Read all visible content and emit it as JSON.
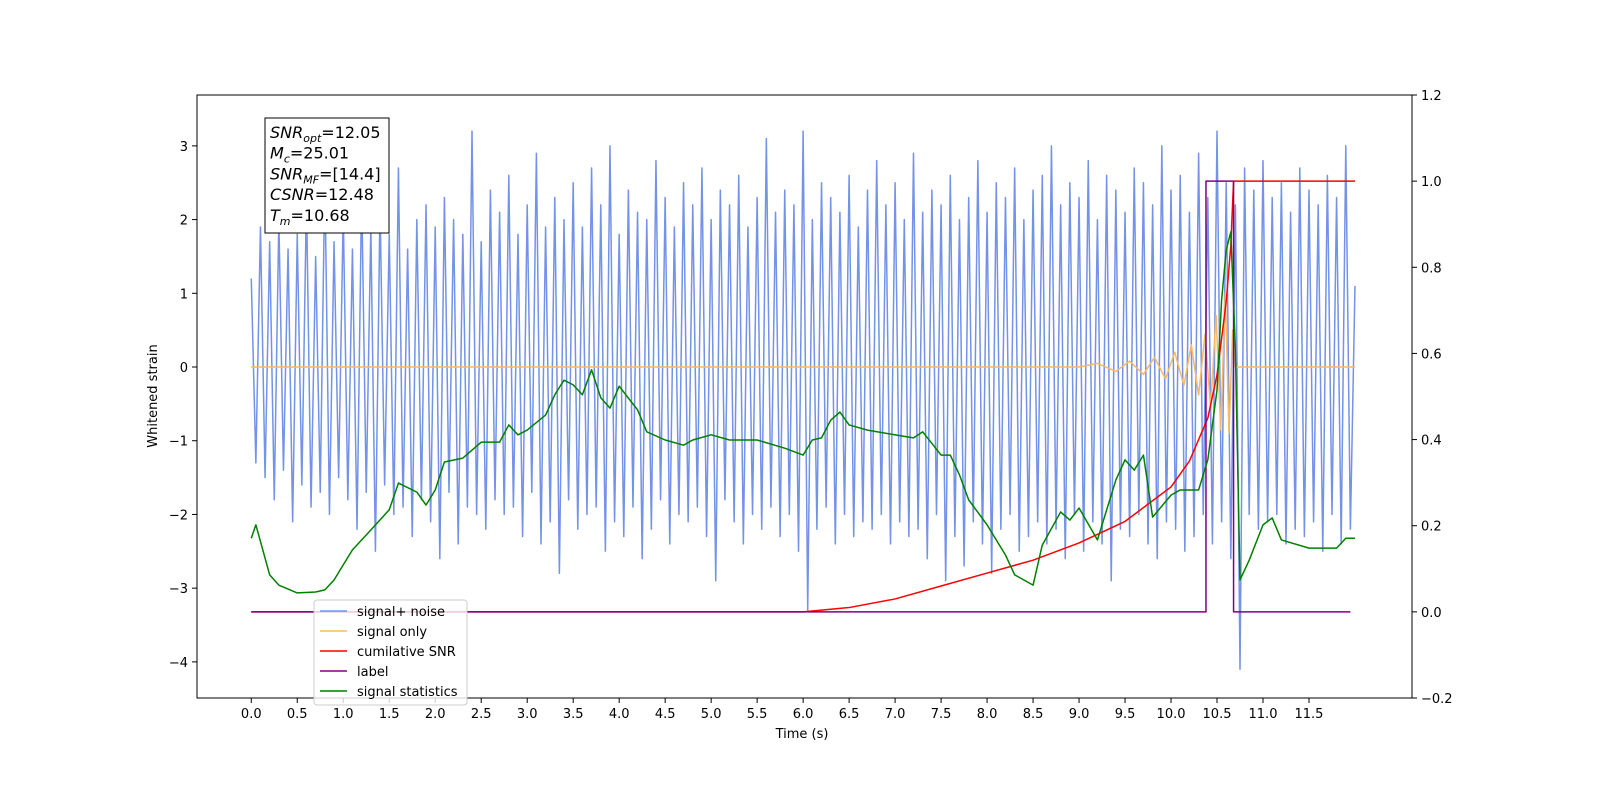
{
  "chart_data": {
    "type": "line",
    "xlabel": "Time (s)",
    "ylabel": "Whitened strain",
    "xlim": [
      -0.59,
      12.62
    ],
    "ylim": [
      -4.49,
      3.69
    ],
    "y2lim": [
      -0.2,
      1.2
    ],
    "xticks": [
      {
        "value": 0,
        "label": "0.0"
      },
      0.5,
      {
        "value": 1,
        "label": "1.0"
      },
      1.5,
      {
        "value": 2,
        "label": "2.0"
      },
      2.5,
      {
        "value": 3,
        "label": "3.0"
      },
      3.5,
      {
        "value": 4,
        "label": "4.0"
      },
      4.5,
      {
        "value": 5,
        "label": "5.0"
      },
      5.5,
      {
        "value": 6,
        "label": "6.0"
      },
      6.5,
      {
        "value": 7,
        "label": "7.0"
      },
      7.5,
      {
        "value": 8,
        "label": "8.0"
      },
      8.5,
      {
        "value": 9,
        "label": "9.0"
      },
      9.5,
      {
        "value": 10,
        "label": "10.0"
      },
      10.5,
      {
        "value": 11,
        "label": "11.0"
      },
      11.5
    ],
    "yticks": [
      {
        "value": -4,
        "label": "−4"
      },
      {
        "value": -3,
        "label": "−3"
      },
      {
        "value": -2,
        "label": "−2"
      },
      {
        "value": -1,
        "label": "−1"
      },
      0,
      1,
      2,
      3
    ],
    "y2ticks": [
      {
        "value": -0.2,
        "label": "−0.2"
      },
      {
        "value": 0,
        "label": "0.0"
      },
      0.2,
      0.4,
      0.6,
      0.8,
      {
        "value": 1,
        "label": "1.0"
      },
      1.2
    ],
    "annotation": [
      {
        "name": "SNR",
        "sub": "opt",
        "rest": "=12.05"
      },
      {
        "name": "M",
        "sub": "c",
        "rest": "=25.01"
      },
      {
        "name": "SNR",
        "sub": "MF",
        "rest": "=[14.4]"
      },
      {
        "name": "CSNR",
        "rest": "=12.48"
      },
      {
        "name": "T",
        "sub": "m",
        "rest": "=10.68"
      }
    ],
    "series": [
      {
        "name": "signal+ noise",
        "color": "#7392e8",
        "x": [
          0,
          0.05,
          0.1,
          0.15,
          0.2,
          0.25,
          0.3,
          0.35,
          0.4,
          0.45,
          0.5,
          0.55,
          0.6,
          0.65,
          0.7,
          0.75,
          0.8,
          0.85,
          0.9,
          0.95,
          1,
          1.05,
          1.1,
          1.15,
          1.2,
          1.25,
          1.3,
          1.35,
          1.4,
          1.45,
          1.5,
          1.55,
          1.6,
          1.65,
          1.7,
          1.75,
          1.8,
          1.85,
          1.9,
          1.95,
          2,
          2.05,
          2.1,
          2.15,
          2.2,
          2.25,
          2.3,
          2.35,
          2.4,
          2.45,
          2.5,
          2.55,
          2.6,
          2.65,
          2.7,
          2.75,
          2.8,
          2.85,
          2.9,
          2.95,
          3,
          3.05,
          3.1,
          3.15,
          3.2,
          3.25,
          3.3,
          3.35,
          3.4,
          3.45,
          3.5,
          3.55,
          3.6,
          3.65,
          3.7,
          3.75,
          3.8,
          3.85,
          3.9,
          3.95,
          4,
          4.05,
          4.1,
          4.15,
          4.2,
          4.25,
          4.3,
          4.35,
          4.4,
          4.45,
          4.5,
          4.55,
          4.6,
          4.65,
          4.7,
          4.75,
          4.8,
          4.85,
          4.9,
          4.95,
          5,
          5.05,
          5.1,
          5.15,
          5.2,
          5.25,
          5.3,
          5.35,
          5.4,
          5.45,
          5.5,
          5.55,
          5.6,
          5.65,
          5.7,
          5.75,
          5.8,
          5.85,
          5.9,
          5.95,
          6,
          6.05,
          6.1,
          6.15,
          6.2,
          6.25,
          6.3,
          6.35,
          6.4,
          6.45,
          6.5,
          6.55,
          6.6,
          6.65,
          6.7,
          6.75,
          6.8,
          6.85,
          6.9,
          6.95,
          7,
          7.05,
          7.1,
          7.15,
          7.2,
          7.25,
          7.3,
          7.35,
          7.4,
          7.45,
          7.5,
          7.55,
          7.6,
          7.65,
          7.7,
          7.75,
          7.8,
          7.85,
          7.9,
          7.95,
          8,
          8.05,
          8.1,
          8.15,
          8.2,
          8.25,
          8.3,
          8.35,
          8.4,
          8.45,
          8.5,
          8.55,
          8.6,
          8.65,
          8.7,
          8.75,
          8.8,
          8.85,
          8.9,
          8.95,
          9,
          9.05,
          9.1,
          9.15,
          9.2,
          9.25,
          9.3,
          9.35,
          9.4,
          9.45,
          9.5,
          9.55,
          9.6,
          9.65,
          9.7,
          9.75,
          9.8,
          9.85,
          9.9,
          9.95,
          10,
          10.05,
          10.1,
          10.15,
          10.2,
          10.25,
          10.3,
          10.35,
          10.4,
          10.45,
          10.5,
          10.55,
          10.6,
          10.65,
          10.7,
          10.75,
          10.8,
          10.85,
          10.9,
          10.95,
          11,
          11.05,
          11.1,
          11.15,
          11.2,
          11.25,
          11.3,
          11.35,
          11.4,
          11.45,
          11.5,
          11.55,
          11.6,
          11.65,
          11.7,
          11.75,
          11.8,
          11.85,
          11.9,
          11.95,
          12
        ],
        "values": [
          1.2,
          -1.3,
          1.9,
          -1.5,
          1.7,
          -1.8,
          2.0,
          -1.4,
          1.6,
          -2.1,
          1.8,
          -1.6,
          2.3,
          -1.9,
          1.5,
          -1.7,
          2.6,
          -2.0,
          1.7,
          -1.5,
          2.1,
          -1.8,
          1.6,
          -2.2,
          2.4,
          -1.7,
          1.9,
          -2.5,
          2.2,
          -1.6,
          1.8,
          -2.0,
          2.7,
          -1.9,
          1.6,
          -2.3,
          2.0,
          -1.8,
          2.2,
          -2.1,
          1.9,
          -2.6,
          2.3,
          -1.7,
          2.0,
          -2.4,
          1.8,
          -1.9,
          3.2,
          -2.0,
          1.7,
          -2.2,
          2.4,
          -1.8,
          2.1,
          -2.0,
          2.6,
          -1.9,
          1.8,
          -2.3,
          2.2,
          -1.7,
          2.9,
          -2.4,
          1.9,
          -2.1,
          2.3,
          -2.8,
          2.0,
          -1.8,
          2.5,
          -2.2,
          1.9,
          -2.0,
          2.7,
          -1.9,
          2.2,
          -2.5,
          3.0,
          -2.1,
          1.8,
          -2.3,
          2.4,
          -1.9,
          2.1,
          -2.6,
          2.0,
          -2.2,
          2.8,
          -1.8,
          2.3,
          -2.4,
          1.9,
          -2.0,
          2.5,
          -2.1,
          2.2,
          -1.9,
          2.7,
          -2.3,
          2.0,
          -2.9,
          2.4,
          -1.8,
          2.2,
          -2.1,
          2.6,
          -2.4,
          1.9,
          -2.0,
          2.3,
          -2.2,
          3.1,
          -1.9,
          2.1,
          -2.3,
          2.4,
          -2.0,
          2.2,
          -2.5,
          3.2,
          -3.3,
          2.0,
          -2.2,
          2.5,
          -1.9,
          2.3,
          -2.4,
          2.1,
          -2.0,
          2.6,
          -2.3,
          1.9,
          -2.1,
          2.4,
          -2.2,
          2.8,
          -2.0,
          2.2,
          -2.4,
          2.5,
          -2.1,
          2.0,
          -2.3,
          2.9,
          -2.2,
          2.1,
          -2.6,
          2.4,
          -2.0,
          2.2,
          -2.9,
          2.6,
          -2.3,
          2.0,
          -2.7,
          2.3,
          -2.1,
          2.8,
          -2.4,
          2.1,
          -2.8,
          2.5,
          -2.2,
          2.3,
          -2.0,
          2.7,
          -2.5,
          2.0,
          -2.3,
          2.4,
          -2.1,
          2.6,
          -2.4,
          3.0,
          -2.2,
          2.2,
          -2.6,
          2.5,
          -2.0,
          2.3,
          -2.5,
          2.8,
          -2.1,
          2.0,
          -2.4,
          2.6,
          -2.9,
          2.4,
          -2.2,
          2.1,
          -2.3,
          2.7,
          -2.0,
          2.5,
          -2.4,
          2.2,
          -2.6,
          3.0,
          -2.1,
          2.4,
          -2.2,
          2.6,
          -2.5,
          2.1,
          -2.3,
          2.9,
          -2.0,
          2.3,
          -2.4,
          3.2,
          -2.1,
          2.5,
          -2.6,
          2.2,
          -4.1,
          2.7,
          -2.0,
          2.4,
          -2.2,
          2.8,
          -2.1,
          2.3,
          -2.0,
          2.5,
          -2.4,
          2.1,
          -2.2,
          2.7,
          -2.3,
          2.4,
          -2.1,
          2.2,
          -2.5,
          2.6,
          -2.0,
          2.3,
          -2.4,
          3.0,
          -2.2,
          1.1
        ]
      },
      {
        "name": "signal only",
        "color": "#f7b965",
        "x": [
          0,
          9.0,
          9.2,
          9.4,
          9.55,
          9.7,
          9.82,
          9.94,
          10.04,
          10.14,
          10.22,
          10.3,
          10.37,
          10.43,
          10.49,
          10.54,
          10.59,
          10.63,
          10.67,
          10.7,
          12.0
        ],
        "values": [
          0,
          0,
          0.05,
          -0.06,
          0.08,
          -0.1,
          0.13,
          -0.16,
          0.2,
          -0.25,
          0.3,
          -0.38,
          0.45,
          -0.55,
          0.7,
          -0.85,
          1.0,
          -0.9,
          0.5,
          0,
          0
        ]
      },
      {
        "name": "cumilative SNR",
        "color": "#ff0000",
        "axis": "y2",
        "x": [
          0,
          6.0,
          6.5,
          7.0,
          7.5,
          8.0,
          8.5,
          9.0,
          9.5,
          10.0,
          10.2,
          10.4,
          10.5,
          10.6,
          10.65,
          10.68,
          12.0
        ],
        "values": [
          0,
          0,
          0.01,
          0.03,
          0.06,
          0.09,
          0.12,
          0.16,
          0.21,
          0.29,
          0.35,
          0.45,
          0.55,
          0.72,
          0.85,
          1.0,
          1.0
        ]
      },
      {
        "name": "label",
        "color": "#800080",
        "axis": "y2",
        "x": [
          0,
          10.38,
          10.38,
          10.68,
          10.68,
          11.95
        ],
        "values": [
          0,
          0,
          1,
          1,
          0,
          0
        ]
      },
      {
        "name": "signal statistics",
        "color": "#008000",
        "axis": "y2",
        "x": [
          0,
          0.05,
          0.2,
          0.3,
          0.5,
          0.7,
          0.8,
          0.9,
          1.0,
          1.1,
          1.3,
          1.5,
          1.6,
          1.8,
          1.9,
          2.0,
          2.1,
          2.3,
          2.5,
          2.7,
          2.8,
          2.9,
          3.0,
          3.2,
          3.3,
          3.4,
          3.5,
          3.6,
          3.7,
          3.8,
          3.9,
          4.0,
          4.2,
          4.3,
          4.5,
          4.7,
          4.8,
          5.0,
          5.2,
          5.5,
          5.8,
          6.0,
          6.1,
          6.2,
          6.3,
          6.4,
          6.5,
          6.7,
          7.0,
          7.2,
          7.3,
          7.5,
          7.6,
          7.7,
          7.8,
          8.0,
          8.2,
          8.3,
          8.5,
          8.6,
          8.8,
          8.9,
          9.0,
          9.2,
          9.4,
          9.5,
          9.6,
          9.7,
          9.8,
          10.0,
          10.1,
          10.3,
          10.4,
          10.5,
          10.55,
          10.6,
          10.65,
          10.7,
          10.75,
          10.85,
          11.0,
          11.1,
          11.2,
          11.5,
          11.8,
          11.9,
          12.0
        ],
        "values": [
          0.171,
          0.202,
          0.086,
          0.062,
          0.044,
          0.046,
          0.051,
          0.074,
          0.109,
          0.144,
          0.19,
          0.237,
          0.299,
          0.278,
          0.248,
          0.283,
          0.348,
          0.357,
          0.394,
          0.394,
          0.434,
          0.411,
          0.422,
          0.457,
          0.504,
          0.538,
          0.527,
          0.504,
          0.562,
          0.497,
          0.473,
          0.524,
          0.469,
          0.418,
          0.399,
          0.387,
          0.399,
          0.411,
          0.399,
          0.399,
          0.38,
          0.364,
          0.399,
          0.404,
          0.445,
          0.464,
          0.434,
          0.422,
          0.411,
          0.404,
          0.418,
          0.364,
          0.364,
          0.318,
          0.26,
          0.202,
          0.132,
          0.086,
          0.062,
          0.155,
          0.232,
          0.213,
          0.241,
          0.167,
          0.306,
          0.353,
          0.329,
          0.364,
          0.22,
          0.271,
          0.283,
          0.283,
          0.353,
          0.515,
          0.724,
          0.84,
          0.882,
          0.608,
          0.074,
          0.12,
          0.202,
          0.218,
          0.167,
          0.148,
          0.148,
          0.171,
          0.171
        ]
      }
    ]
  }
}
